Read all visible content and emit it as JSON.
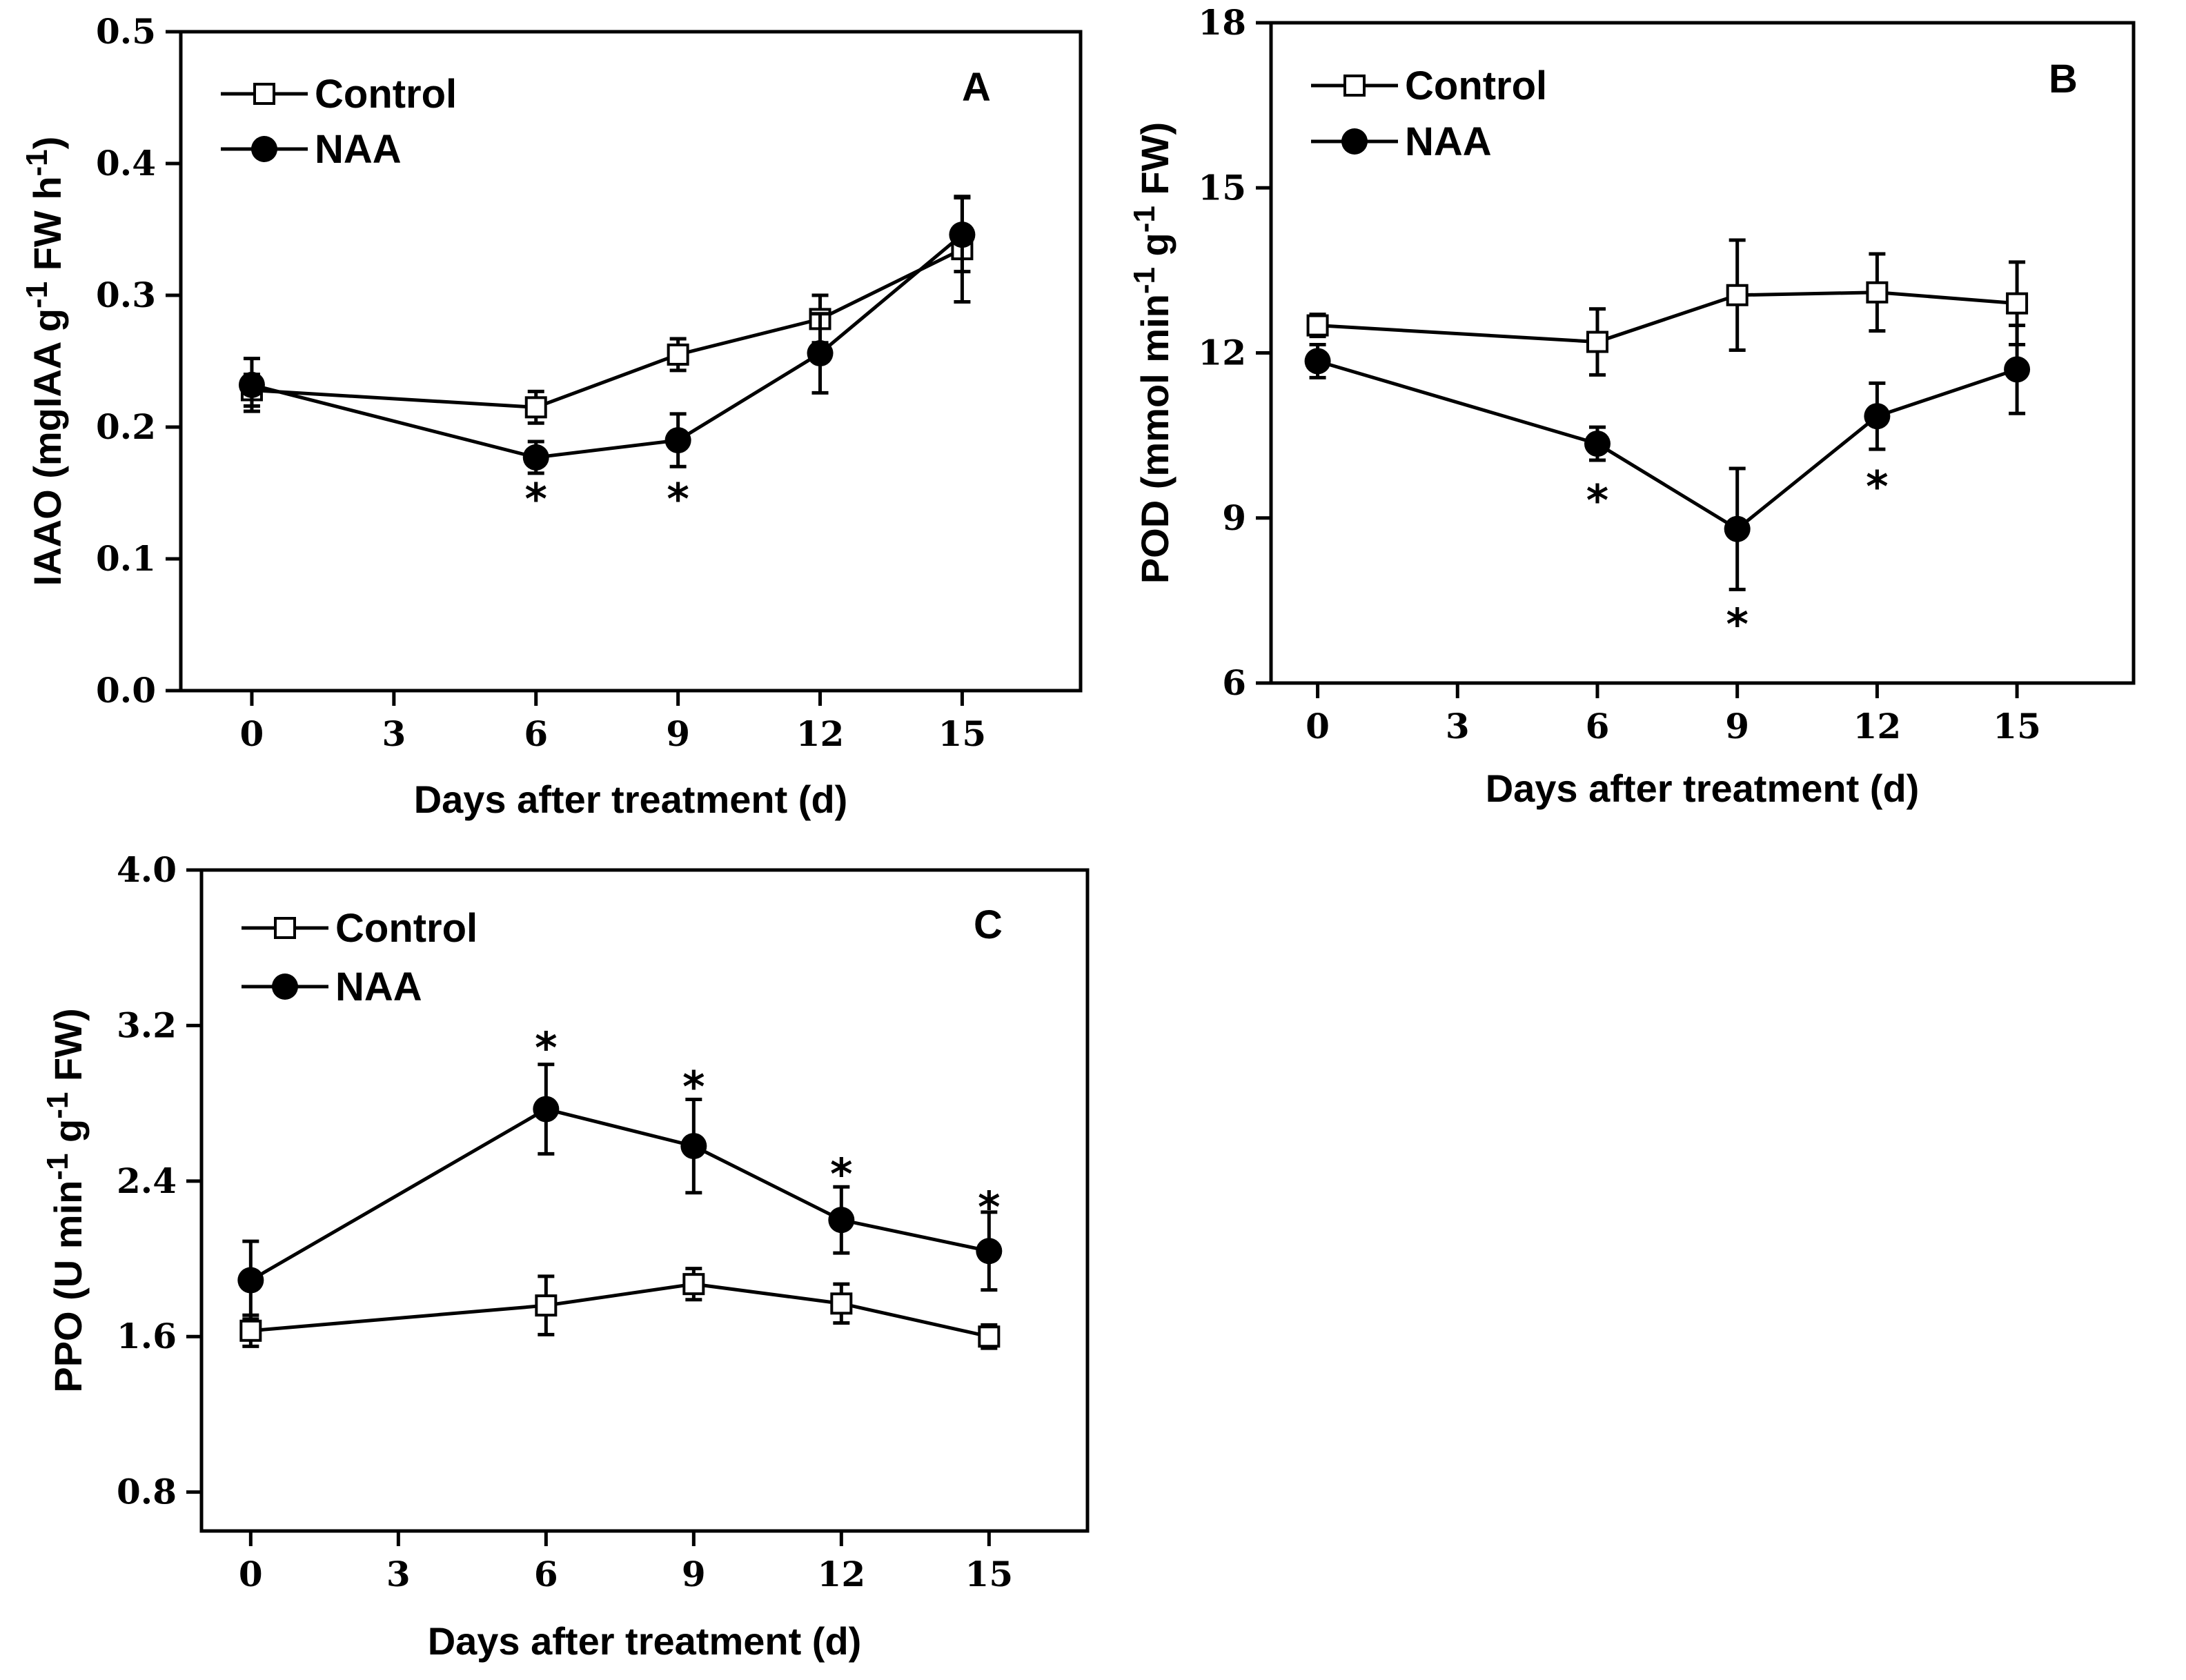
{
  "chart_data": [
    {
      "type": "line",
      "panel_label": "A",
      "xlabel": "Days after treatment (d)",
      "ylabel": "IAAO (mgIAA g-1 FW h-1)",
      "ylabel_parts": {
        "pre": "IAAO (mgIAA g",
        "sup1": "-1",
        "mid": " FW h",
        "sup2": "-1",
        "post": ")"
      },
      "xlim": [
        -1.5,
        17.5
      ],
      "ylim": [
        0.0,
        0.5
      ],
      "xticks": [
        0,
        3,
        6,
        9,
        12,
        15
      ],
      "xtick_labels": [
        "0",
        "3",
        "6",
        "9",
        "12",
        "15"
      ],
      "yticks": [
        0.0,
        0.1,
        0.2,
        0.3,
        0.4,
        0.5
      ],
      "ytick_labels": [
        "0.0",
        "0.1",
        "0.2",
        "0.3",
        "0.4",
        "0.5"
      ],
      "legend_position": "top-left",
      "series": [
        {
          "name": "Control",
          "marker": "open-square",
          "x": [
            0,
            6,
            9,
            12,
            15
          ],
          "values": [
            0.228,
            0.215,
            0.255,
            0.282,
            0.335
          ],
          "errors": [
            0.012,
            0.012,
            0.012,
            0.018,
            0.04
          ]
        },
        {
          "name": "NAA",
          "marker": "filled-circle",
          "x": [
            0,
            6,
            9,
            12,
            15
          ],
          "values": [
            0.232,
            0.177,
            0.19,
            0.256,
            0.346
          ],
          "errors": [
            0.02,
            0.012,
            0.02,
            0.03,
            0.028
          ]
        }
      ],
      "annotations": [
        {
          "text": "*",
          "x": 6,
          "y": 0.155
        },
        {
          "text": "*",
          "x": 9,
          "y": 0.155
        }
      ]
    },
    {
      "type": "line",
      "panel_label": "B",
      "xlabel": "Days after treatment (d)",
      "ylabel": "POD (mmol min-1 g-1 FW)",
      "ylabel_parts": {
        "pre": "POD (mmol min",
        "sup1": "-1",
        "mid": " g",
        "sup2": "-1",
        "post": " FW)"
      },
      "xlim": [
        -1,
        17.5
      ],
      "ylim": [
        6,
        18
      ],
      "xticks": [
        0,
        3,
        6,
        9,
        12,
        15
      ],
      "xtick_labels": [
        "0",
        "3",
        "6",
        "9",
        "12",
        "15"
      ],
      "yticks": [
        6,
        9,
        12,
        15,
        18
      ],
      "ytick_labels": [
        "6",
        "9",
        "12",
        "15",
        "18"
      ],
      "legend_position": "top-left",
      "series": [
        {
          "name": "Control",
          "marker": "open-square",
          "x": [
            0,
            6,
            9,
            12,
            15
          ],
          "values": [
            12.5,
            12.2,
            13.05,
            13.1,
            12.9
          ],
          "errors": [
            0.2,
            0.6,
            1.0,
            0.7,
            0.75
          ]
        },
        {
          "name": "NAA",
          "marker": "filled-circle",
          "x": [
            0,
            6,
            9,
            12,
            15
          ],
          "values": [
            11.85,
            10.35,
            8.8,
            10.85,
            11.7
          ],
          "errors": [
            0.3,
            0.3,
            1.1,
            0.6,
            0.8
          ]
        }
      ],
      "annotations": [
        {
          "text": "*",
          "x": 6,
          "y": 9.55
        },
        {
          "text": "*",
          "x": 9,
          "y": 7.3
        },
        {
          "text": "*",
          "x": 12,
          "y": 9.8
        }
      ]
    },
    {
      "type": "line",
      "panel_label": "C",
      "xlabel": "Days after treatment (d)",
      "ylabel": "PPO (U min-1 g-1 FW)",
      "ylabel_parts": {
        "pre": "PPO (U min",
        "sup1": "-1",
        "mid": " g",
        "sup2": "-1",
        "post": " FW)"
      },
      "xlim": [
        -1,
        17
      ],
      "ylim": [
        0.6,
        4.0
      ],
      "xticks": [
        0,
        3,
        6,
        9,
        12,
        15
      ],
      "xtick_labels": [
        "0",
        "3",
        "6",
        "9",
        "12",
        "15"
      ],
      "yticks": [
        0.8,
        1.6,
        2.4,
        3.2,
        4.0
      ],
      "ytick_labels": [
        "0.8",
        "1.6",
        "2.4",
        "3.2",
        "4.0"
      ],
      "legend_position": "top-left",
      "series": [
        {
          "name": "Control",
          "marker": "open-square",
          "x": [
            0,
            6,
            9,
            12,
            15
          ],
          "values": [
            1.63,
            1.76,
            1.87,
            1.77,
            1.6
          ],
          "errors": [
            0.08,
            0.15,
            0.08,
            0.1,
            0.06
          ]
        },
        {
          "name": "NAA",
          "marker": "filled-circle",
          "x": [
            0,
            6,
            9,
            12,
            15
          ],
          "values": [
            1.89,
            2.77,
            2.58,
            2.2,
            2.04
          ],
          "errors": [
            0.2,
            0.23,
            0.24,
            0.17,
            0.2
          ]
        }
      ],
      "annotations": [
        {
          "text": "*",
          "x": 6,
          "y": 3.15
        },
        {
          "text": "*",
          "x": 9,
          "y": 2.95
        },
        {
          "text": "*",
          "x": 12,
          "y": 2.5
        },
        {
          "text": "*",
          "x": 15,
          "y": 2.33
        }
      ]
    }
  ]
}
